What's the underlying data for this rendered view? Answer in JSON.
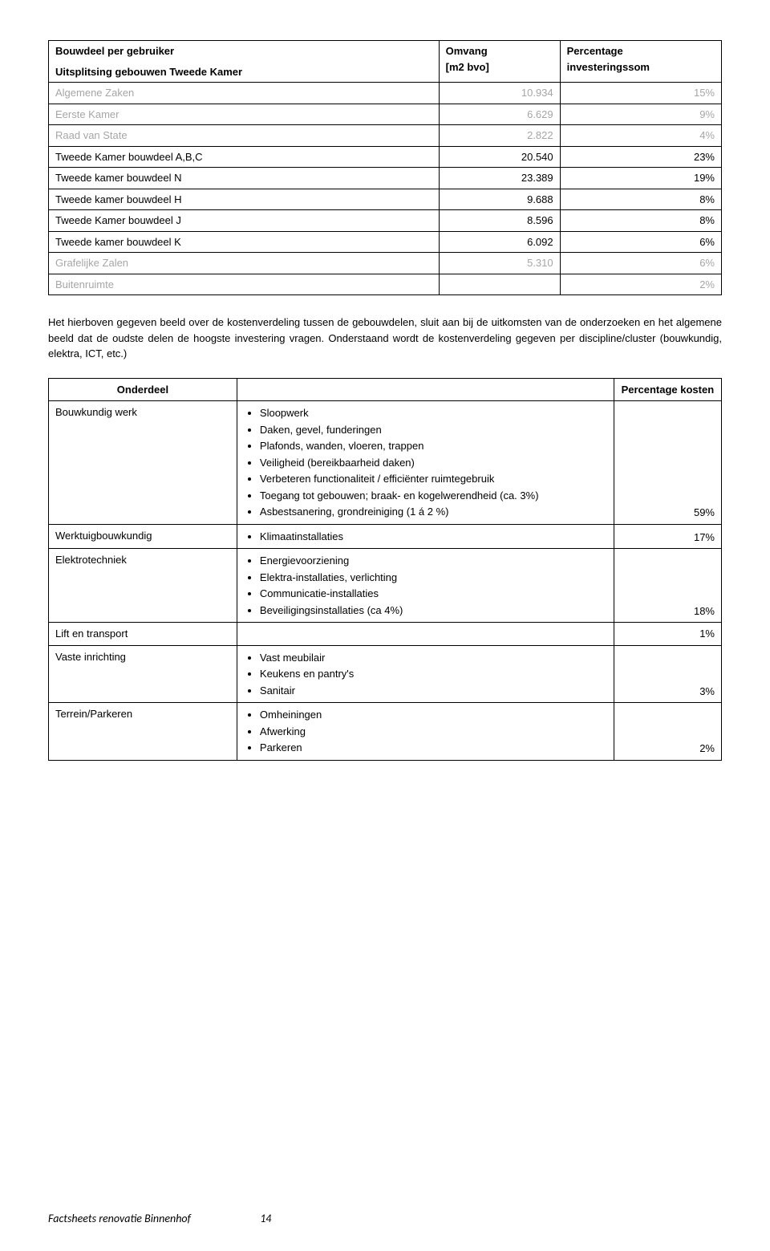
{
  "table1": {
    "headers": {
      "col1a": "Bouwdeel per gebruiker",
      "col1b": "Uitsplitsing gebouwen Tweede Kamer",
      "col2a": "Omvang",
      "col2b": "[m2 bvo]",
      "col3a": "Percentage",
      "col3b": "investeringssom"
    },
    "rows": [
      {
        "label": "Algemene Zaken",
        "v1": "10.934",
        "v2": "15%",
        "grey": true
      },
      {
        "label": "Eerste Kamer",
        "v1": "6.629",
        "v2": "9%",
        "grey": true
      },
      {
        "label": "Raad van State",
        "v1": "2.822",
        "v2": "4%",
        "grey": true
      },
      {
        "label": "Tweede Kamer bouwdeel A,B,C",
        "v1": "20.540",
        "v2": "23%",
        "grey": false
      },
      {
        "label": "Tweede kamer bouwdeel N",
        "v1": "23.389",
        "v2": "19%",
        "grey": false
      },
      {
        "label": "Tweede kamer bouwdeel H",
        "v1": "9.688",
        "v2": "8%",
        "grey": false
      },
      {
        "label": "Tweede Kamer bouwdeel J",
        "v1": "8.596",
        "v2": "8%",
        "grey": false
      },
      {
        "label": "Tweede kamer bouwdeel K",
        "v1": "6.092",
        "v2": "6%",
        "grey": false
      },
      {
        "label": "Grafelijke Zalen",
        "v1": "5.310",
        "v2": "6%",
        "grey": true
      },
      {
        "label": "Buitenruimte",
        "v1": "",
        "v2": "2%",
        "grey": true
      }
    ]
  },
  "paragraph": "Het hierboven gegeven beeld over de kostenverdeling tussen de gebouwdelen, sluit aan bij de uitkomsten van de onderzoeken en het algemene beeld dat de oudste delen de hoogste investering vragen. Onderstaand wordt de kostenverdeling gegeven per discipline/cluster (bouwkundig, elektra, ICT, etc.)",
  "table2": {
    "headers": {
      "onderdeel": "Onderdeel",
      "pct": "Percentage kosten"
    },
    "rows": [
      {
        "cat": "Bouwkundig werk",
        "bullets": [
          "Sloopwerk",
          "Daken, gevel, funderingen",
          "Plafonds, wanden, vloeren, trappen",
          "Veiligheid (bereikbaarheid daken)",
          "Verbeteren functionaliteit / efficiënter ruimtegebruik",
          "Toegang tot gebouwen; braak- en kogelwerendheid (ca. 3%)",
          "Asbestsanering, grondreiniging (1 á 2 %)"
        ],
        "pct": "59%"
      },
      {
        "cat": "Werktuigbouwkundig",
        "bullets": [
          "Klimaatinstallaties"
        ],
        "pct": "17%"
      },
      {
        "cat": "Elektrotechniek",
        "bullets": [
          "Energievoorziening",
          "Elektra-installaties, verlichting",
          "Communicatie-installaties",
          "Beveiligingsinstallaties (ca 4%)"
        ],
        "pct": "18%"
      },
      {
        "cat": "Lift en transport",
        "bullets": [],
        "pct": "1%"
      },
      {
        "cat": "Vaste inrichting",
        "bullets": [
          "Vast meubilair",
          "Keukens en pantry's",
          "Sanitair"
        ],
        "pct": "3%"
      },
      {
        "cat": "Terrein/Parkeren",
        "bullets": [
          "Omheiningen",
          "Afwerking",
          "Parkeren"
        ],
        "pct": "2%"
      }
    ]
  },
  "footer": {
    "title": "Factsheets renovatie Binnenhof",
    "page": "14"
  }
}
